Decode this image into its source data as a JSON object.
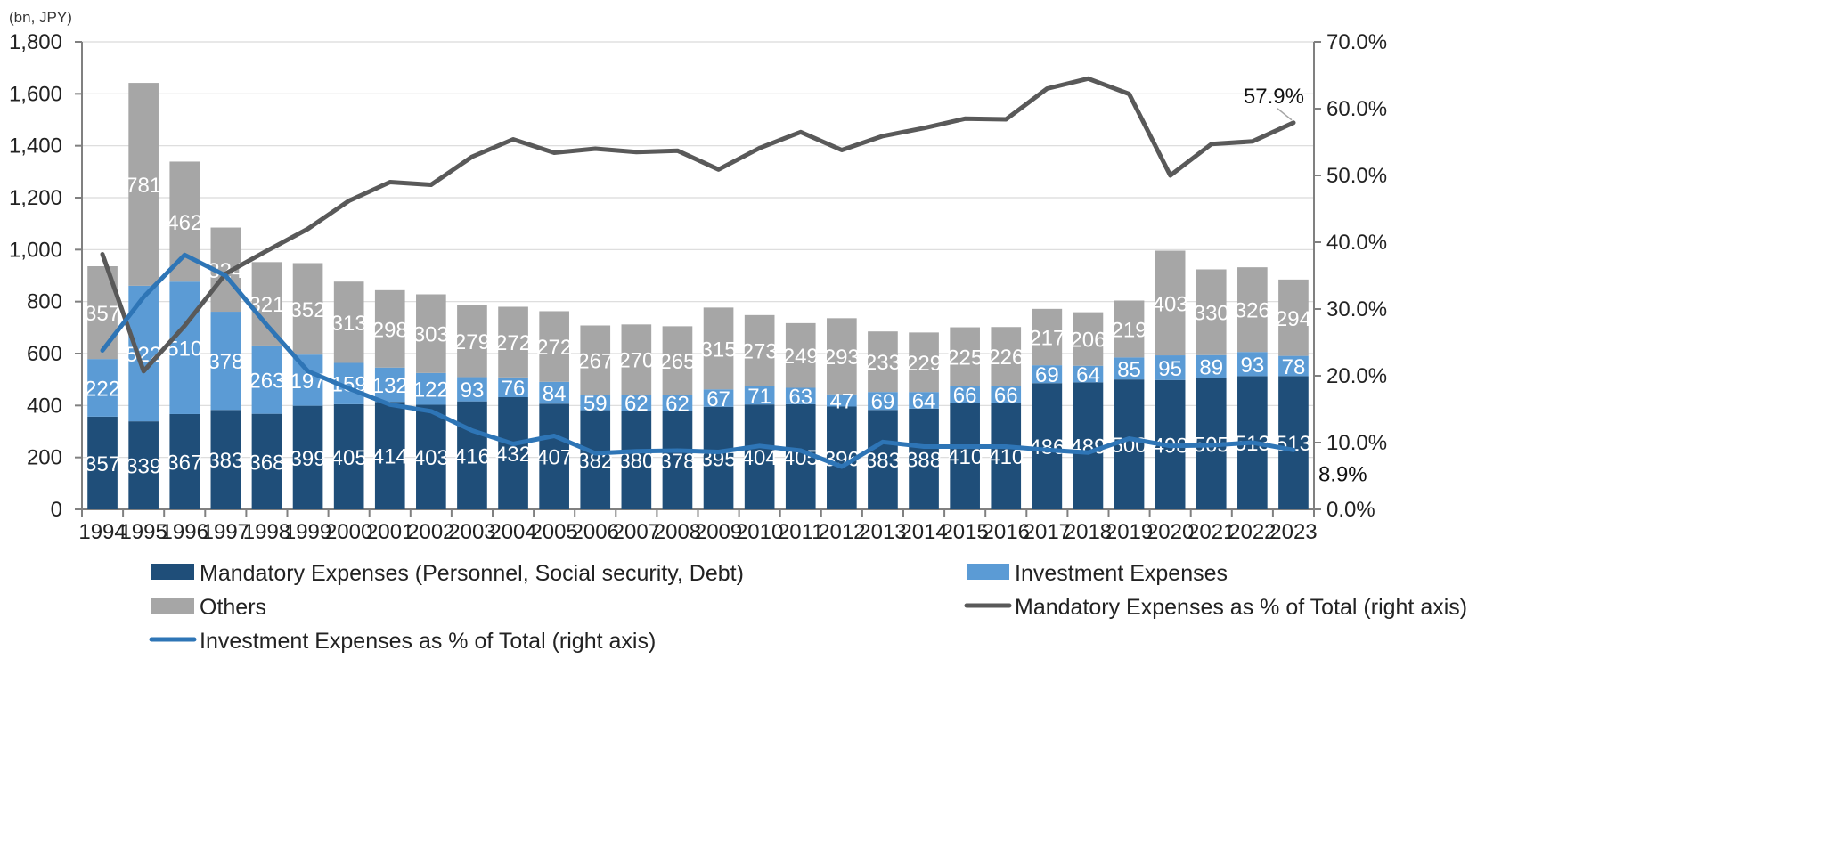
{
  "chart_data": {
    "type": "bar",
    "stacked": true,
    "unit_label": "(bn, JPY)",
    "categories": [
      "1994",
      "1995",
      "1996",
      "1997",
      "1998",
      "1999",
      "2000",
      "2001",
      "2002",
      "2003",
      "2004",
      "2005",
      "2006",
      "2007",
      "2008",
      "2009",
      "2010",
      "2011",
      "2012",
      "2013",
      "2014",
      "2015",
      "2016",
      "2017",
      "2018",
      "2019",
      "2020",
      "2021",
      "2022",
      "2023"
    ],
    "series": [
      {
        "name": "Mandatory Expenses (Personnel, Social security, Debt)",
        "color": "#1f4e79",
        "values": [
          357,
          339,
          367,
          383,
          368,
          399,
          405,
          414,
          403,
          416,
          432,
          407,
          382,
          380,
          378,
          395,
          404,
          405,
          396,
          383,
          388,
          410,
          410,
          486,
          489,
          500,
          498,
          505,
          513,
          513
        ]
      },
      {
        "name": "Investment Expenses",
        "color": "#5b9bd5",
        "values": [
          222,
          522,
          510,
          378,
          263,
          197,
          159,
          132,
          122,
          93,
          76,
          84,
          59,
          62,
          62,
          67,
          71,
          63,
          47,
          69,
          64,
          66,
          66,
          69,
          64,
          85,
          95,
          89,
          93,
          78
        ]
      },
      {
        "name": "Others",
        "color": "#a6a6a6",
        "values": [
          357,
          781,
          462,
          324,
          321,
          352,
          313,
          298,
          303,
          279,
          272,
          272,
          267,
          270,
          265,
          315,
          273,
          249,
          293,
          233,
          229,
          225,
          226,
          217,
          206,
          219,
          403,
          330,
          326,
          294
        ]
      }
    ],
    "lines": [
      {
        "name": "Mandatory Expenses as % of Total (right axis)",
        "color": "#595959",
        "axis": "right",
        "values": [
          38.2,
          20.7,
          27.5,
          35.3,
          38.7,
          42.0,
          46.2,
          49.0,
          48.6,
          52.8,
          55.4,
          53.4,
          54.0,
          53.5,
          53.7,
          50.9,
          54.1,
          56.5,
          53.8,
          55.9,
          57.1,
          58.5,
          58.4,
          63.0,
          64.5,
          62.2,
          50.0,
          54.7,
          55.1,
          57.9
        ]
      },
      {
        "name": "Investment Expenses as % of Total (right axis)",
        "color": "#2e75b6",
        "axis": "right",
        "values": [
          23.8,
          31.8,
          38.1,
          35.0,
          27.6,
          20.7,
          18.1,
          15.7,
          14.7,
          11.8,
          9.8,
          11.0,
          8.4,
          8.7,
          8.8,
          8.6,
          9.5,
          8.8,
          6.4,
          10.1,
          9.4,
          9.4,
          9.4,
          8.9,
          8.5,
          10.6,
          9.5,
          9.6,
          10.0,
          8.9
        ]
      }
    ],
    "end_labels": {
      "mandatory_pct": "57.9%",
      "investment_pct": "8.9%"
    },
    "y_left": {
      "min": 0,
      "max": 1800,
      "step": 200,
      "tick_labels": [
        "0",
        "200",
        "400",
        "600",
        "800",
        "1,000",
        "1,200",
        "1,400",
        "1,600",
        "1,800"
      ]
    },
    "y_right": {
      "min": 0,
      "max": 70,
      "step": 10,
      "tick_labels": [
        "0.0%",
        "10.0%",
        "20.0%",
        "30.0%",
        "40.0%",
        "50.0%",
        "60.0%",
        "70.0%"
      ]
    },
    "grid": true,
    "legend_position": "bottom"
  }
}
